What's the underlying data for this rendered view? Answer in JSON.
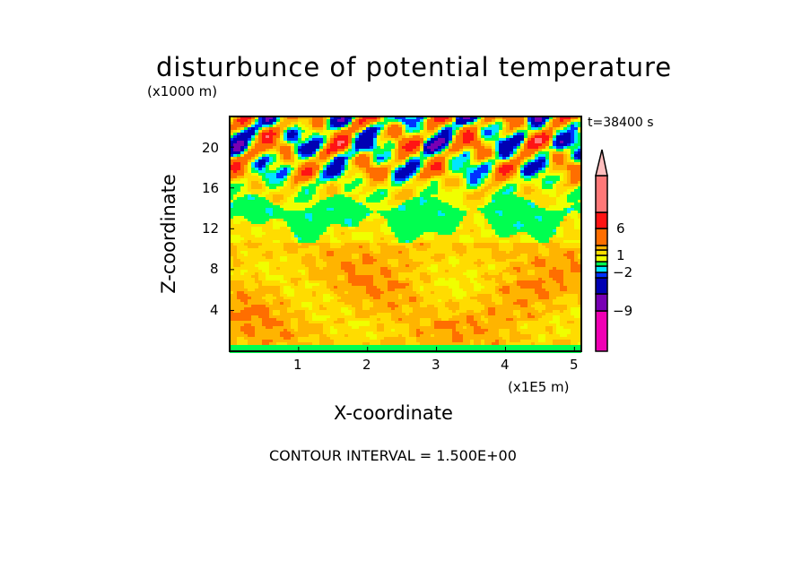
{
  "chart_data": {
    "type": "heatmap",
    "title": "disturbunce of potential temperature",
    "xlabel": "X-coordinate",
    "ylabel": "Z-coordinate",
    "x_unit": "(x1E5 m)",
    "y_unit": "(x1000 m)",
    "time_label": "t=38400 s",
    "footer": "CONTOUR INTERVAL = 1.500E+00",
    "xlim": [
      0,
      5.1
    ],
    "ylim": [
      0,
      23
    ],
    "xticks": [
      "1",
      "2",
      "3",
      "4",
      "5"
    ],
    "xtick_values": [
      1,
      2,
      3,
      4,
      5
    ],
    "yticks": [
      "4",
      "8",
      "12",
      "16",
      "20"
    ],
    "ytick_values": [
      4,
      8,
      12,
      16,
      20
    ],
    "colorbar": {
      "labels": [
        "6",
        "1",
        "−2",
        "−9"
      ],
      "colors_bottom_to_top": [
        "#f000b4",
        "#7800b4",
        "#0000b4",
        "#0032ff",
        "#00e6ff",
        "#00ff50",
        "#f0ff00",
        "#ffdc00",
        "#ffb400",
        "#ff6e00",
        "#ff1414",
        "#ff7878",
        "#ffbebe"
      ]
    }
  }
}
